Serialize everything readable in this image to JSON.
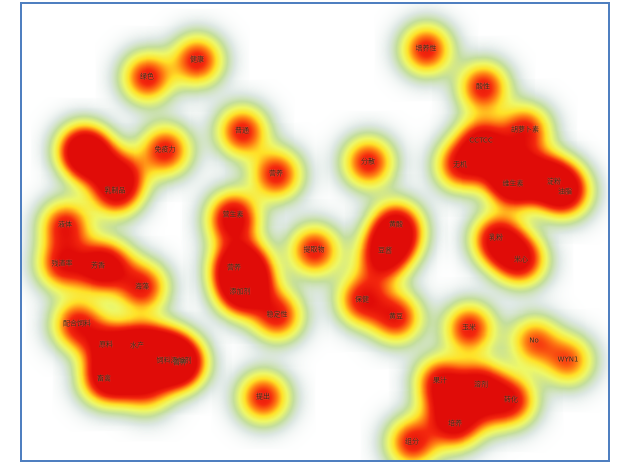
{
  "map": {
    "terms": [
      {
        "label": "健康",
        "w": 1.0
      },
      {
        "label": "绿色",
        "w": 1.0
      },
      {
        "label": "免疫力",
        "w": 1.0
      },
      {
        "label": "普通",
        "w": 1.0
      },
      {
        "label": "营养",
        "w": 1.0
      },
      {
        "label": "营生素",
        "w": 1.0
      },
      {
        "label": "营养",
        "w": 1.0
      },
      {
        "label": "添加剂",
        "w": 1.0
      },
      {
        "label": "稳定性",
        "w": 1.0
      },
      {
        "label": "提取物",
        "w": 1.0
      },
      {
        "label": "分散",
        "w": 1.0
      },
      {
        "label": "增养性",
        "w": 1.0
      },
      {
        "label": "酸性",
        "w": 1.0
      },
      {
        "label": "CCTCC",
        "w": 1.0
      },
      {
        "label": "胡萝卜素",
        "w": 1.0
      },
      {
        "label": "无机",
        "w": 1.0
      },
      {
        "label": "维生素",
        "w": 1.0
      },
      {
        "label": "淀粉",
        "w": 1.0
      },
      {
        "label": "油脂",
        "w": 1.0
      },
      {
        "label": "黄酸",
        "w": 1.0
      },
      {
        "label": "豆酱",
        "w": 1.0
      },
      {
        "label": "乳粉",
        "w": 1.0
      },
      {
        "label": "米心",
        "w": 1.0
      },
      {
        "label": "保健",
        "w": 1.0
      },
      {
        "label": "黄豆",
        "w": 1.0
      },
      {
        "label": "乳制品",
        "w": 1.0
      },
      {
        "label": "液体",
        "w": 1.0
      },
      {
        "label": "残渣率",
        "w": 1.0
      },
      {
        "label": "芳香",
        "w": 1.0
      },
      {
        "label": "海藻",
        "w": 1.0
      },
      {
        "label": "配合饲料",
        "w": 1.0
      },
      {
        "label": "原料",
        "w": 1.0
      },
      {
        "label": "水产",
        "w": 1.0
      },
      {
        "label": "畜禽",
        "w": 1.0
      },
      {
        "label": "饲料添加剂",
        "w": 1.0
      },
      {
        "label": "提出",
        "w": 1.0
      },
      {
        "label": "果汁",
        "w": 1.0
      },
      {
        "label": "溶剂",
        "w": 1.0
      },
      {
        "label": "转化",
        "w": 1.0
      },
      {
        "label": "培养",
        "w": 1.0
      },
      {
        "label": "组分",
        "w": 1.0
      },
      {
        "label": "玉米",
        "w": 1.0
      },
      {
        "label": "No",
        "w": 0.8
      },
      {
        "label": "WYN1",
        "w": 0.8
      },
      {
        "label": "营养",
        "w": 1.0
      }
    ]
  }
}
